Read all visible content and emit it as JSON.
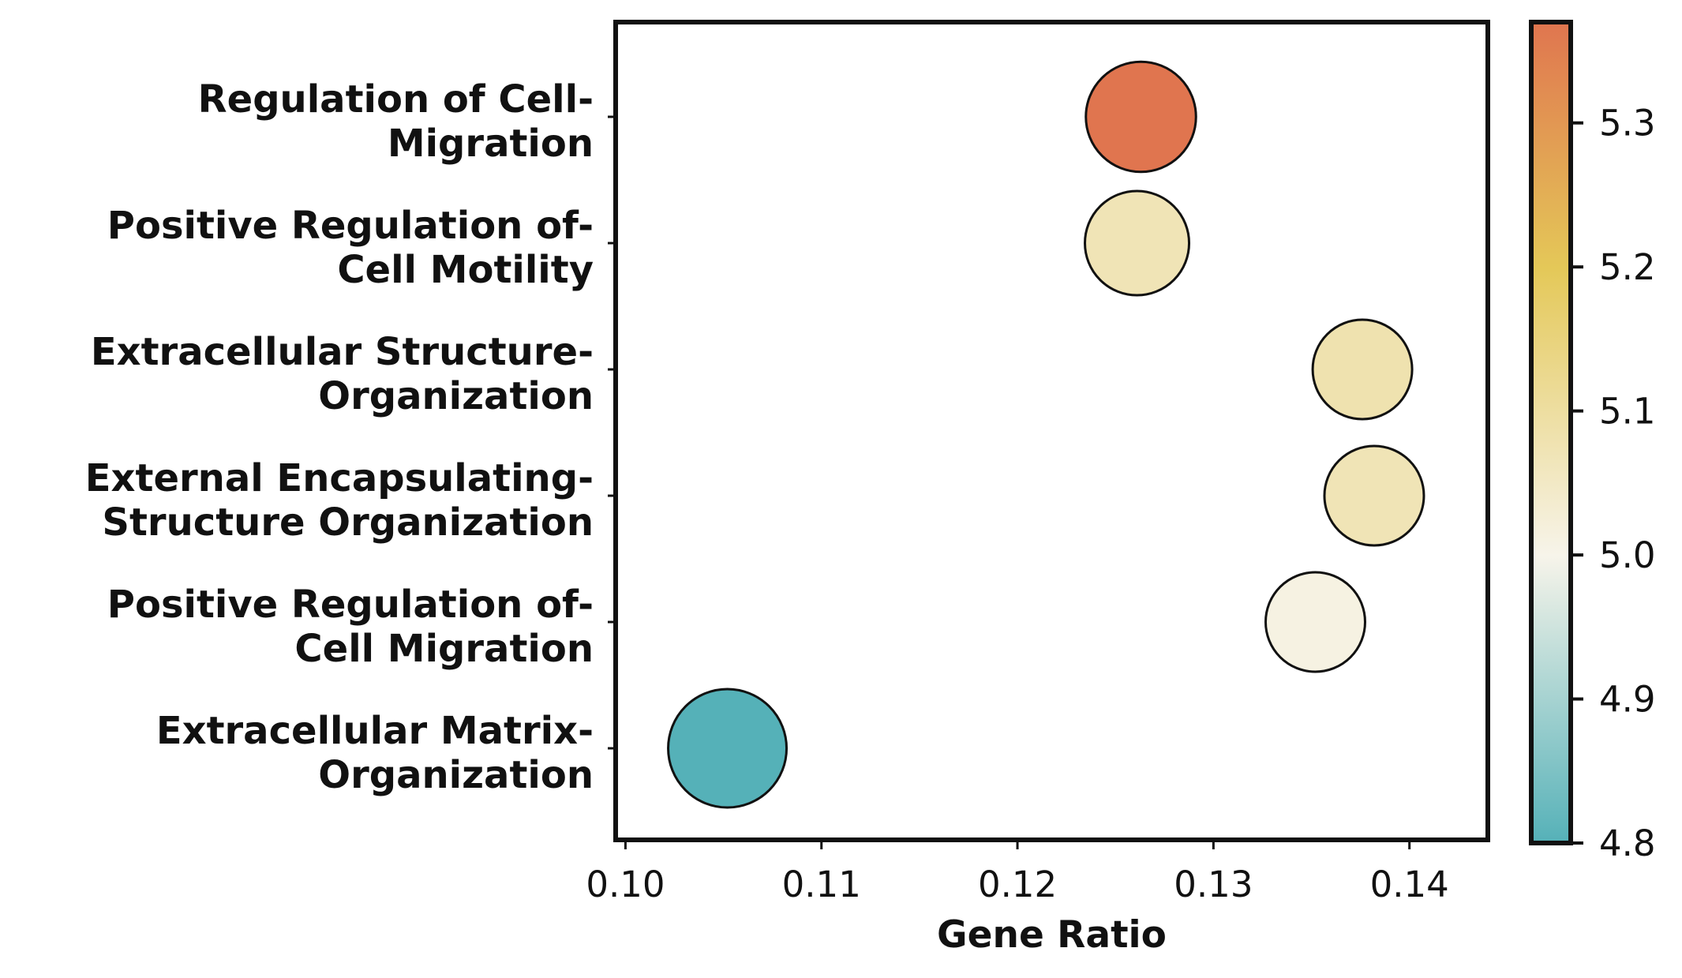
{
  "chart_data": {
    "type": "scatter",
    "title": "",
    "xlabel": "Gene Ratio",
    "ylabel": "",
    "xlim": [
      0.0995,
      0.144
    ],
    "x_ticks": [
      "0.10",
      "0.11",
      "0.12",
      "0.13",
      "0.14"
    ],
    "x_tick_values": [
      0.1,
      0.11,
      0.12,
      0.13,
      0.14
    ],
    "categories": [
      [
        "Regulation of Cell-",
        "Migration"
      ],
      [
        "Positive Regulation of-",
        "Cell Motility"
      ],
      [
        "Extracellular Structure-",
        "Organization"
      ],
      [
        "External Encapsulating-",
        "Structure Organization"
      ],
      [
        "Positive Regulation of-",
        "Cell Migration"
      ],
      [
        "Extracellular Matrix-",
        "Organization"
      ]
    ],
    "points": [
      {
        "x": 0.1263,
        "color_value": 5.37,
        "size": 0.93
      },
      {
        "x": 0.1261,
        "color_value": 5.07,
        "size": 0.88
      },
      {
        "x": 0.1376,
        "color_value": 5.08,
        "size": 0.84
      },
      {
        "x": 0.1382,
        "color_value": 5.07,
        "size": 0.84
      },
      {
        "x": 0.1352,
        "color_value": 5.01,
        "size": 0.84
      },
      {
        "x": 0.1052,
        "color_value": 4.8,
        "size": 1.0
      }
    ],
    "colorbar": {
      "range": [
        4.8,
        5.37
      ],
      "ticks": [
        "4.8",
        "4.9",
        "5.0",
        "5.1",
        "5.2",
        "5.3"
      ],
      "tick_values": [
        4.8,
        4.9,
        5.0,
        5.1,
        5.2,
        5.3
      ],
      "colors": [
        "#55b1b8",
        "#f7f4ea",
        "#e4c858",
        "#e0754f"
      ]
    },
    "grid": false,
    "legend": "colorbar-right"
  }
}
